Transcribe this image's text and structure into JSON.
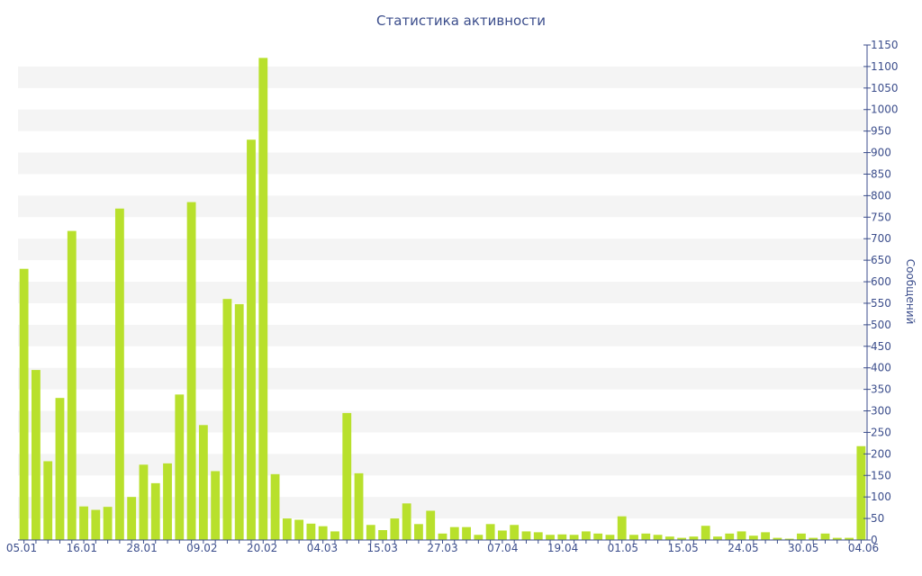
{
  "chart_data": {
    "type": "bar",
    "title": "Статистика активности",
    "ylabel": "Сообщений",
    "xlabel": "",
    "ylim": [
      0,
      1150
    ],
    "y_ticks": [
      0,
      50,
      100,
      150,
      200,
      250,
      300,
      350,
      400,
      450,
      500,
      550,
      600,
      650,
      700,
      750,
      800,
      850,
      900,
      950,
      1000,
      1050,
      1100,
      1150
    ],
    "y_axis_side": "right",
    "grid": "alternating horizontal bands",
    "x_tick_labels": [
      "05.01",
      "16.01",
      "28.01",
      "09.02",
      "20.02",
      "04.03",
      "15.03",
      "27.03",
      "07.04",
      "19.04",
      "01.05",
      "15.05",
      "24.05",
      "30.05",
      "04.06"
    ],
    "values": [
      630,
      395,
      183,
      330,
      718,
      78,
      70,
      77,
      770,
      100,
      175,
      132,
      178,
      338,
      785,
      267,
      160,
      560,
      548,
      930,
      1120,
      153,
      50,
      47,
      38,
      32,
      20,
      295,
      155,
      35,
      23,
      50,
      85,
      37,
      68,
      15,
      30,
      30,
      12,
      37,
      22,
      35,
      20,
      18,
      12,
      13,
      12,
      20,
      15,
      12,
      55,
      12,
      15,
      12,
      8,
      5,
      8,
      33,
      8,
      15,
      20,
      10,
      18,
      5,
      3,
      15,
      5,
      15,
      5,
      5,
      218
    ],
    "bar_color": "#b8e02c"
  }
}
